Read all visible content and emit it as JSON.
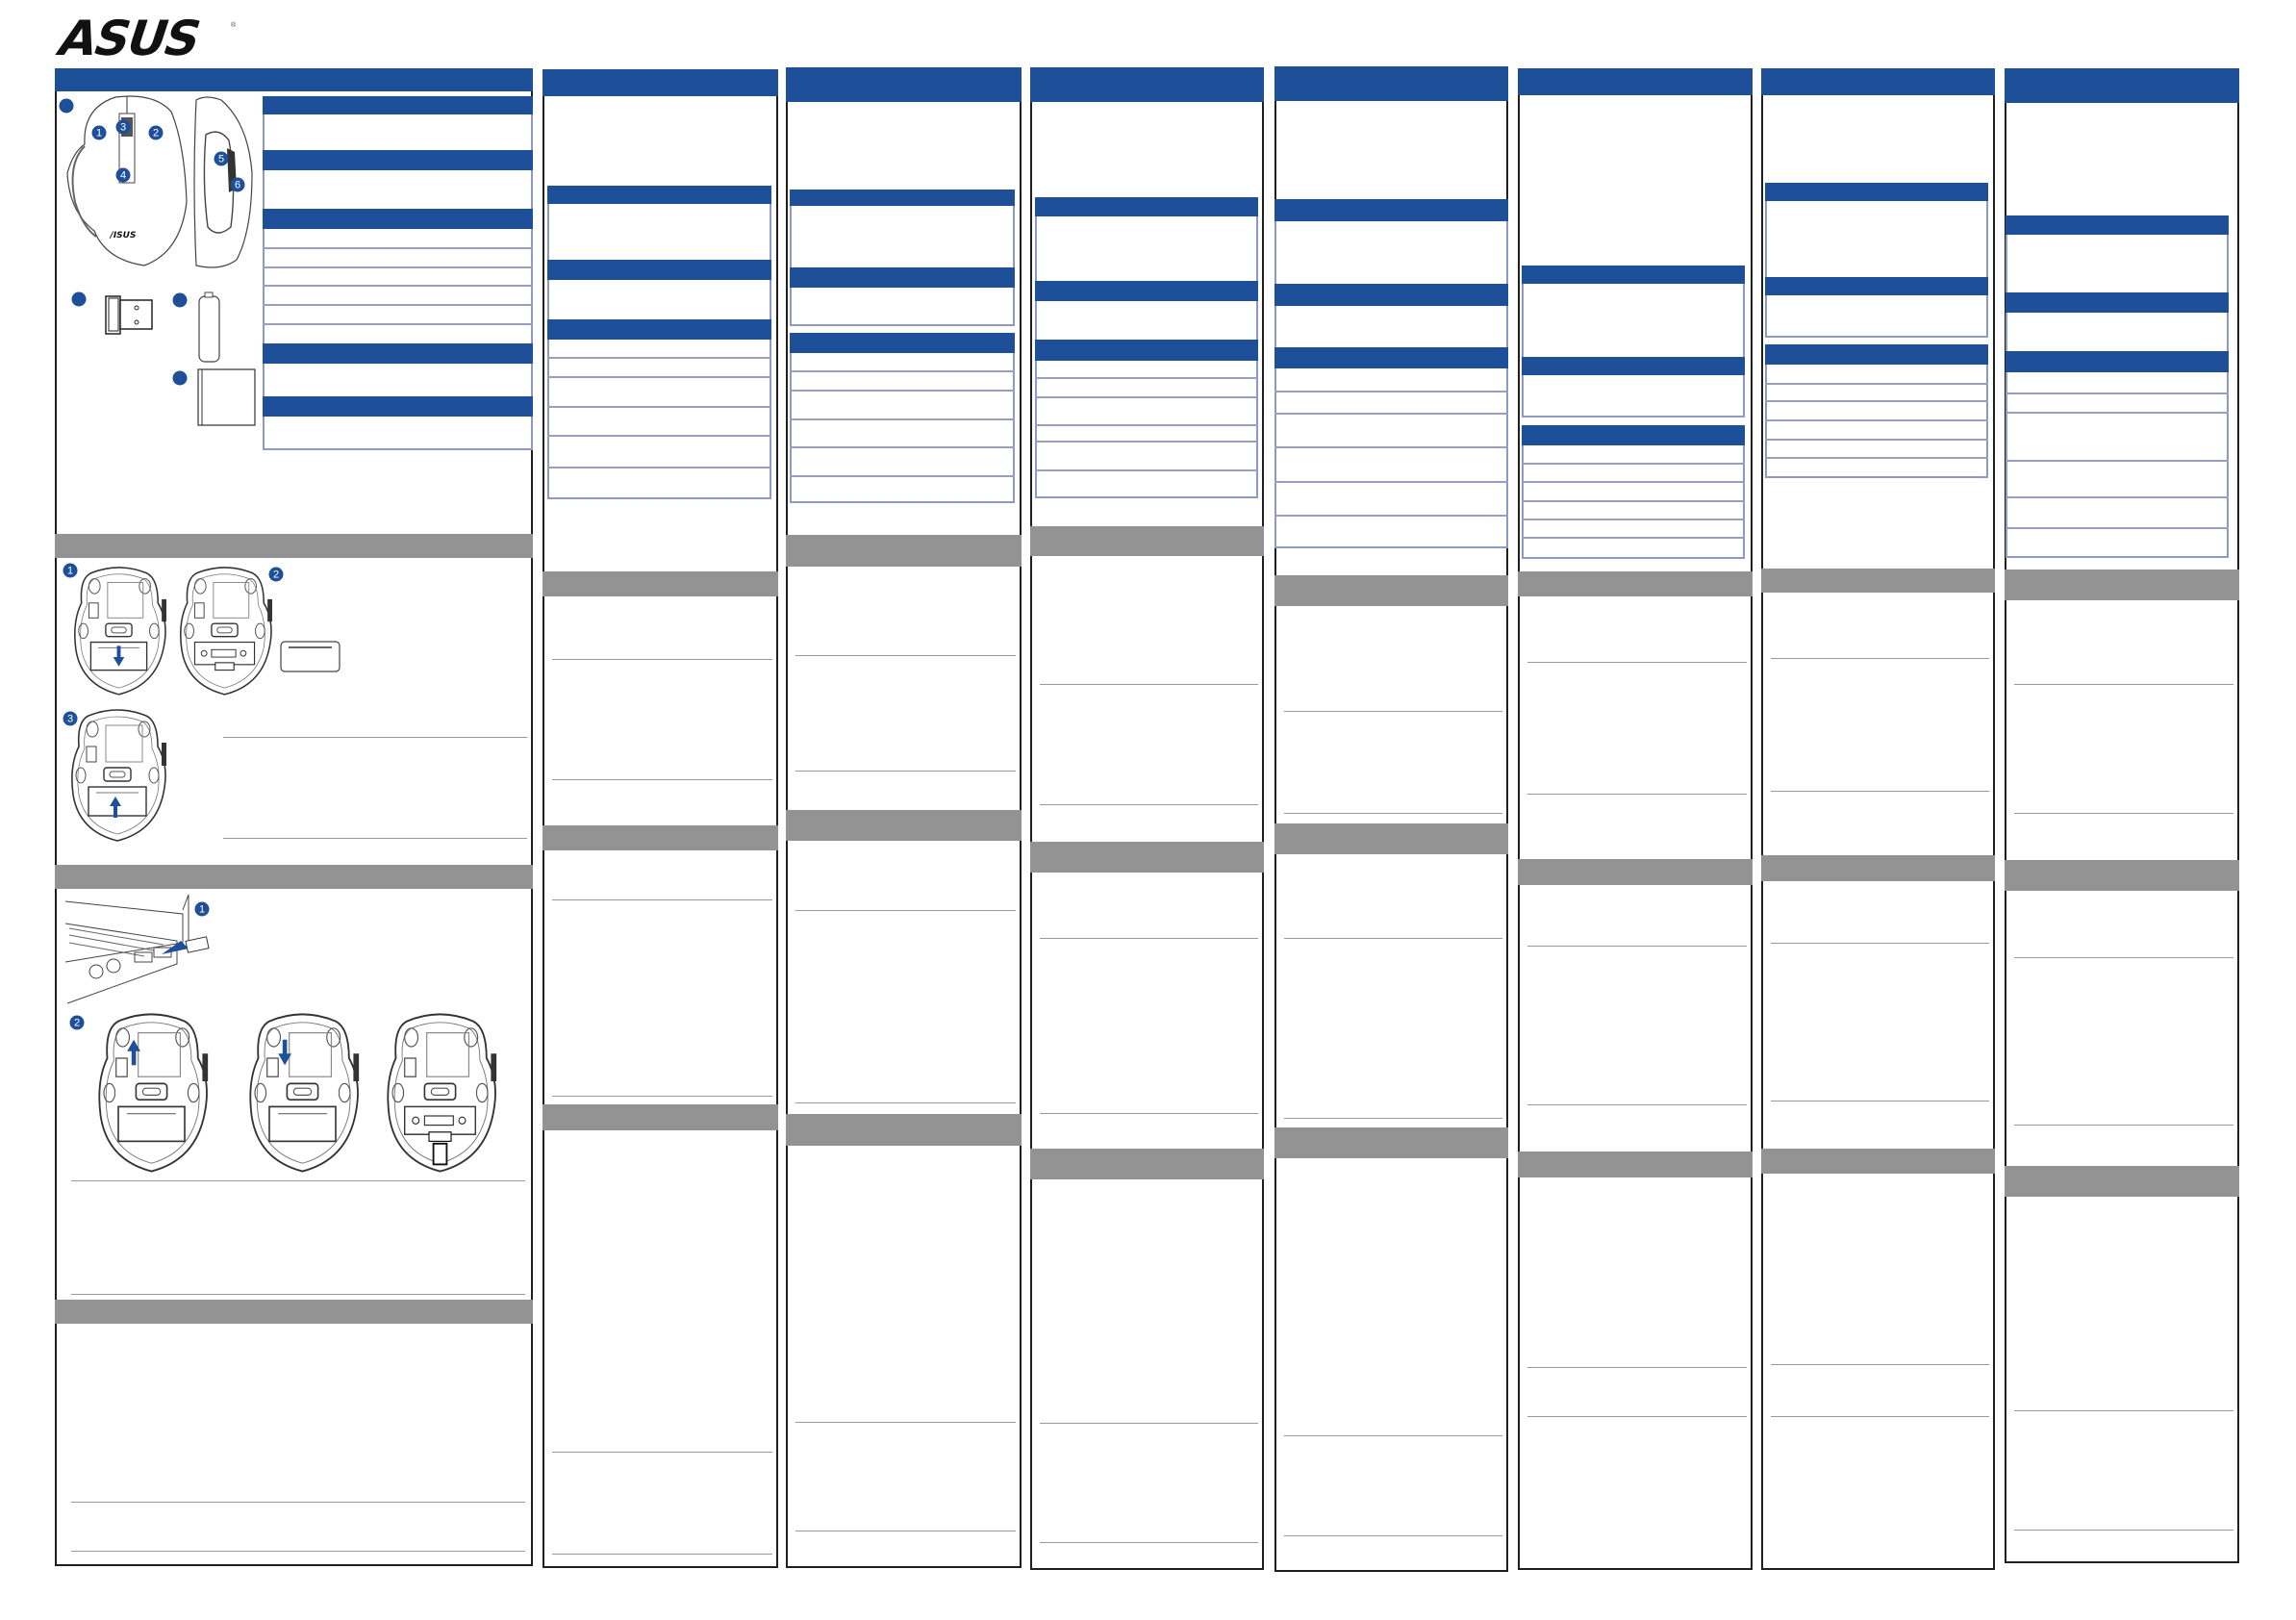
{
  "brand": {
    "logo_text": "ASUS",
    "registered_mark": "®"
  },
  "colors": {
    "section_header": "#1e4f99",
    "gray_band": "#939393",
    "table_border": "#8f9ac4",
    "rule": "#9a9a9a",
    "panel_border": "#1f1f1f",
    "arrow": "#1e4f99"
  },
  "callouts": {
    "mouse_parts": [
      "1",
      "2",
      "3",
      "4",
      "5",
      "6"
    ],
    "battery_steps": [
      "1",
      "2",
      "3"
    ],
    "connect_steps": [
      "1",
      "2"
    ]
  },
  "illustrations": {
    "package_contents": [
      "mouse-top-view",
      "mouse-side-view",
      "usb-receiver",
      "aa-battery",
      "quick-start-guide"
    ],
    "battery_install": [
      "mouse-bottom-open-cover",
      "mouse-bottom-battery-inserted",
      "battery-cover",
      "mouse-bottom-close-cover"
    ],
    "connect": [
      "laptop-usb-port",
      "mouse-bottom-switch-on",
      "mouse-bottom-switch-off",
      "mouse-bottom-receiver-storage"
    ]
  }
}
